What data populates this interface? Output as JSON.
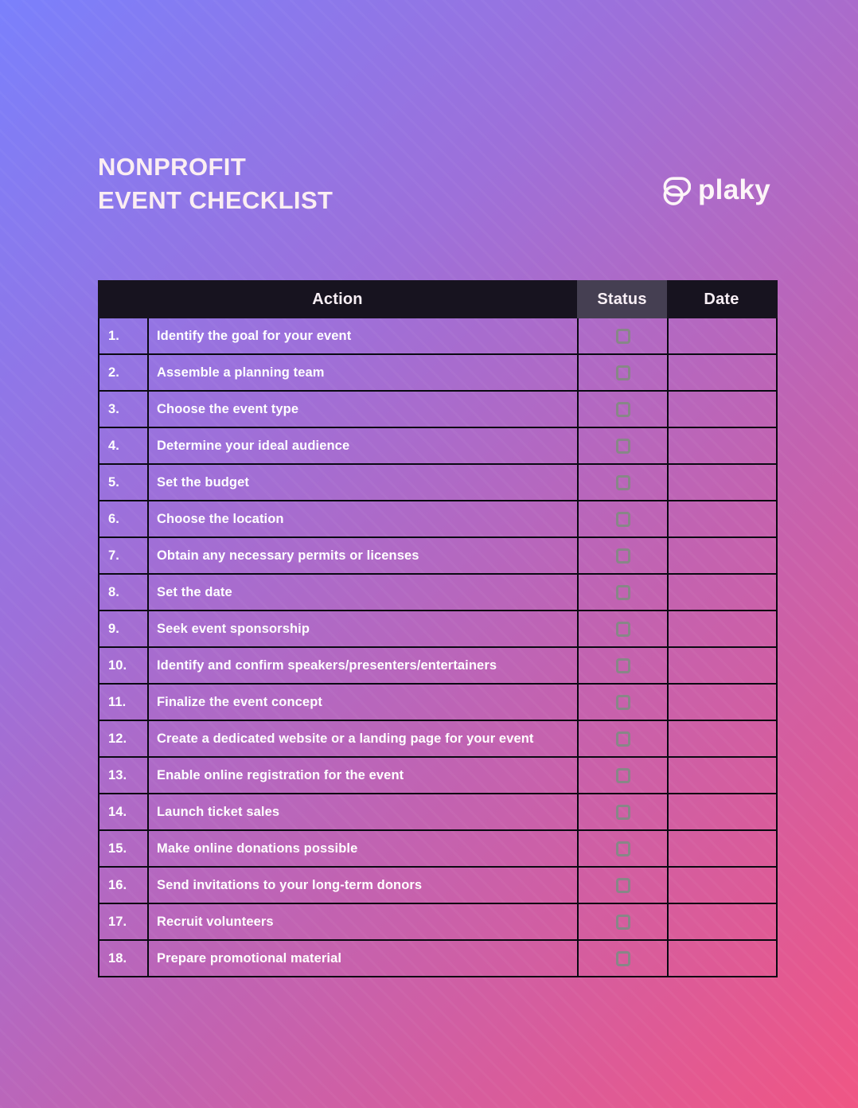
{
  "document": {
    "title_line1": "NONPROFIT",
    "title_line2": "EVENT CHECKLIST"
  },
  "brand": {
    "name": "plaky",
    "logo_icon": "plaky-overlapping-shapes-icon"
  },
  "table": {
    "headers": {
      "action": "Action",
      "status": "Status",
      "date": "Date"
    },
    "rows": [
      {
        "num": "1.",
        "action": "Identify the goal for your event",
        "checked": false,
        "date": ""
      },
      {
        "num": "2.",
        "action": "Assemble a planning team",
        "checked": false,
        "date": ""
      },
      {
        "num": "3.",
        "action": "Choose the event type",
        "checked": false,
        "date": ""
      },
      {
        "num": "4.",
        "action": "Determine your ideal audience",
        "checked": false,
        "date": ""
      },
      {
        "num": "5.",
        "action": "Set the budget",
        "checked": false,
        "date": ""
      },
      {
        "num": "6.",
        "action": "Choose the location",
        "checked": false,
        "date": ""
      },
      {
        "num": "7.",
        "action": "Obtain any necessary permits or licenses",
        "checked": false,
        "date": ""
      },
      {
        "num": "8.",
        "action": "Set the date",
        "checked": false,
        "date": ""
      },
      {
        "num": "9.",
        "action": "Seek event sponsorship",
        "checked": false,
        "date": ""
      },
      {
        "num": "10.",
        "action": "Identify and confirm speakers/presenters/entertainers",
        "checked": false,
        "date": ""
      },
      {
        "num": "11.",
        "action": "Finalize the event concept",
        "checked": false,
        "date": ""
      },
      {
        "num": "12.",
        "action": "Create a dedicated website or a landing page for your event",
        "checked": false,
        "date": ""
      },
      {
        "num": "13.",
        "action": "Enable online registration for the event",
        "checked": false,
        "date": ""
      },
      {
        "num": "14.",
        "action": "Launch ticket sales",
        "checked": false,
        "date": ""
      },
      {
        "num": "15.",
        "action": "Make online donations possible",
        "checked": false,
        "date": ""
      },
      {
        "num": "16.",
        "action": "Send invitations to your long-term donors",
        "checked": false,
        "date": ""
      },
      {
        "num": "17.",
        "action": "Recruit volunteers",
        "checked": false,
        "date": ""
      },
      {
        "num": "18.",
        "action": "Prepare promotional material",
        "checked": false,
        "date": ""
      }
    ]
  },
  "colors": {
    "gradient_top_left": "#7a80fc",
    "gradient_bottom_right": "#f05584",
    "header_bg": "#17131f",
    "status_header_bg": "#453f52",
    "table_border": "#0a0a12",
    "title_text": "#fbeef2",
    "row_text": "#ffffff",
    "checkbox_outline": "#878787"
  }
}
